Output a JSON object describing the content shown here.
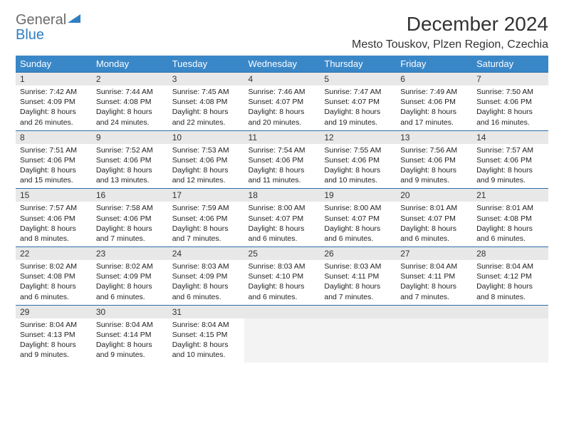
{
  "logo": {
    "word1": "General",
    "word2": "Blue"
  },
  "title": "December 2024",
  "location": "Mesto Touskov, Plzen Region, Czechia",
  "colors": {
    "header_bg": "#3a87c8",
    "header_text": "#ffffff",
    "rule": "#2f6fa8",
    "daynum_bg": "#e8e8e8",
    "empty_bg": "#f3f3f3",
    "text": "#222222",
    "logo_gray": "#6b6b6b",
    "logo_blue": "#2f7fc2"
  },
  "dow": [
    "Sunday",
    "Monday",
    "Tuesday",
    "Wednesday",
    "Thursday",
    "Friday",
    "Saturday"
  ],
  "weeks": [
    [
      {
        "n": "1",
        "sr": "7:42 AM",
        "ss": "4:09 PM",
        "dl": "8 hours and 26 minutes."
      },
      {
        "n": "2",
        "sr": "7:44 AM",
        "ss": "4:08 PM",
        "dl": "8 hours and 24 minutes."
      },
      {
        "n": "3",
        "sr": "7:45 AM",
        "ss": "4:08 PM",
        "dl": "8 hours and 22 minutes."
      },
      {
        "n": "4",
        "sr": "7:46 AM",
        "ss": "4:07 PM",
        "dl": "8 hours and 20 minutes."
      },
      {
        "n": "5",
        "sr": "7:47 AM",
        "ss": "4:07 PM",
        "dl": "8 hours and 19 minutes."
      },
      {
        "n": "6",
        "sr": "7:49 AM",
        "ss": "4:06 PM",
        "dl": "8 hours and 17 minutes."
      },
      {
        "n": "7",
        "sr": "7:50 AM",
        "ss": "4:06 PM",
        "dl": "8 hours and 16 minutes."
      }
    ],
    [
      {
        "n": "8",
        "sr": "7:51 AM",
        "ss": "4:06 PM",
        "dl": "8 hours and 15 minutes."
      },
      {
        "n": "9",
        "sr": "7:52 AM",
        "ss": "4:06 PM",
        "dl": "8 hours and 13 minutes."
      },
      {
        "n": "10",
        "sr": "7:53 AM",
        "ss": "4:06 PM",
        "dl": "8 hours and 12 minutes."
      },
      {
        "n": "11",
        "sr": "7:54 AM",
        "ss": "4:06 PM",
        "dl": "8 hours and 11 minutes."
      },
      {
        "n": "12",
        "sr": "7:55 AM",
        "ss": "4:06 PM",
        "dl": "8 hours and 10 minutes."
      },
      {
        "n": "13",
        "sr": "7:56 AM",
        "ss": "4:06 PM",
        "dl": "8 hours and 9 minutes."
      },
      {
        "n": "14",
        "sr": "7:57 AM",
        "ss": "4:06 PM",
        "dl": "8 hours and 9 minutes."
      }
    ],
    [
      {
        "n": "15",
        "sr": "7:57 AM",
        "ss": "4:06 PM",
        "dl": "8 hours and 8 minutes."
      },
      {
        "n": "16",
        "sr": "7:58 AM",
        "ss": "4:06 PM",
        "dl": "8 hours and 7 minutes."
      },
      {
        "n": "17",
        "sr": "7:59 AM",
        "ss": "4:06 PM",
        "dl": "8 hours and 7 minutes."
      },
      {
        "n": "18",
        "sr": "8:00 AM",
        "ss": "4:07 PM",
        "dl": "8 hours and 6 minutes."
      },
      {
        "n": "19",
        "sr": "8:00 AM",
        "ss": "4:07 PM",
        "dl": "8 hours and 6 minutes."
      },
      {
        "n": "20",
        "sr": "8:01 AM",
        "ss": "4:07 PM",
        "dl": "8 hours and 6 minutes."
      },
      {
        "n": "21",
        "sr": "8:01 AM",
        "ss": "4:08 PM",
        "dl": "8 hours and 6 minutes."
      }
    ],
    [
      {
        "n": "22",
        "sr": "8:02 AM",
        "ss": "4:08 PM",
        "dl": "8 hours and 6 minutes."
      },
      {
        "n": "23",
        "sr": "8:02 AM",
        "ss": "4:09 PM",
        "dl": "8 hours and 6 minutes."
      },
      {
        "n": "24",
        "sr": "8:03 AM",
        "ss": "4:09 PM",
        "dl": "8 hours and 6 minutes."
      },
      {
        "n": "25",
        "sr": "8:03 AM",
        "ss": "4:10 PM",
        "dl": "8 hours and 6 minutes."
      },
      {
        "n": "26",
        "sr": "8:03 AM",
        "ss": "4:11 PM",
        "dl": "8 hours and 7 minutes."
      },
      {
        "n": "27",
        "sr": "8:04 AM",
        "ss": "4:11 PM",
        "dl": "8 hours and 7 minutes."
      },
      {
        "n": "28",
        "sr": "8:04 AM",
        "ss": "4:12 PM",
        "dl": "8 hours and 8 minutes."
      }
    ],
    [
      {
        "n": "29",
        "sr": "8:04 AM",
        "ss": "4:13 PM",
        "dl": "8 hours and 9 minutes."
      },
      {
        "n": "30",
        "sr": "8:04 AM",
        "ss": "4:14 PM",
        "dl": "8 hours and 9 minutes."
      },
      {
        "n": "31",
        "sr": "8:04 AM",
        "ss": "4:15 PM",
        "dl": "8 hours and 10 minutes."
      },
      null,
      null,
      null,
      null
    ]
  ],
  "labels": {
    "sunrise": "Sunrise:",
    "sunset": "Sunset:",
    "daylight": "Daylight:"
  }
}
